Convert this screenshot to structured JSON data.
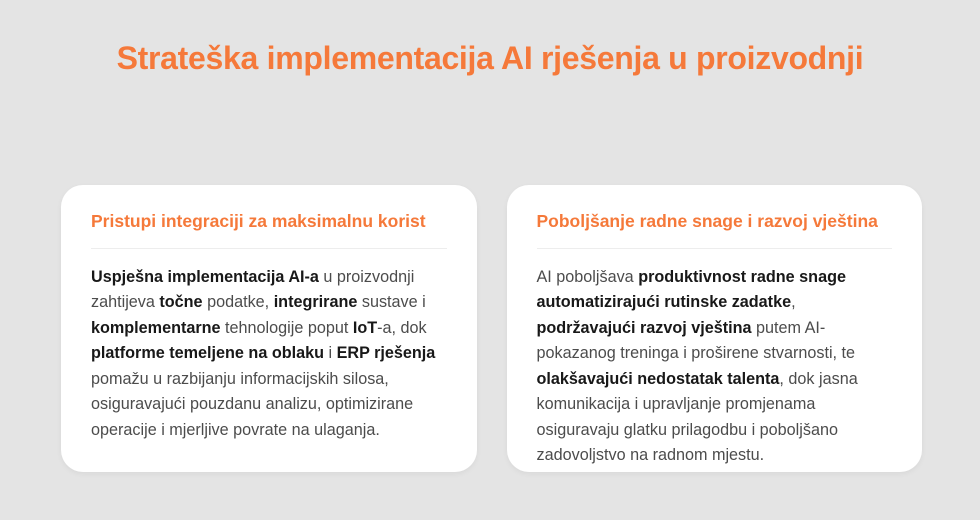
{
  "page": {
    "title": "Strateška implementacija AI rješenja u proizvodnji",
    "background_color": "#e4e4e4",
    "accent_color": "#f5793a"
  },
  "cards": [
    {
      "title": "Pristupi integraciji za maksimalnu korist",
      "body": [
        {
          "t": "Uspješna implementacija AI-a",
          "b": true
        },
        {
          "t": " u proizvodnji zahtijeva ",
          "b": false
        },
        {
          "t": "točne",
          "b": true
        },
        {
          "t": " podatke, ",
          "b": false
        },
        {
          "t": "integrirane",
          "b": true
        },
        {
          "t": " sustave i ",
          "b": false
        },
        {
          "t": "komplementarne",
          "b": true
        },
        {
          "t": " tehnologije poput ",
          "b": false
        },
        {
          "t": "IoT",
          "b": true
        },
        {
          "t": "-a, dok ",
          "b": false
        },
        {
          "t": "platforme temeljene na oblaku",
          "b": true
        },
        {
          "t": " i ",
          "b": false
        },
        {
          "t": "ERP rješenja",
          "b": true
        },
        {
          "t": " pomažu u razbijanju informacijskih silosa, osiguravajući pouzdanu analizu, optimizirane operacije i mjerljive povrate na ulaganja.",
          "b": false
        }
      ]
    },
    {
      "title": "Poboljšanje radne snage i razvoj vještina",
      "body": [
        {
          "t": "AI poboljšava ",
          "b": false
        },
        {
          "t": "produktivnost radne snage automatizirajući rutinske zadatke",
          "b": true
        },
        {
          "t": ", ",
          "b": false
        },
        {
          "t": "podržavajući razvoj vještina",
          "b": true
        },
        {
          "t": " putem AI-pokazanog treninga i proširene stvarnosti, te ",
          "b": false
        },
        {
          "t": "olakšavajući nedostatak talenta",
          "b": true
        },
        {
          "t": ", dok jasna komunikacija i upravljanje promjenama osiguravaju glatku prilagodbu i poboljšano zadovoljstvo na radnom mjestu.",
          "b": false
        }
      ]
    }
  ]
}
